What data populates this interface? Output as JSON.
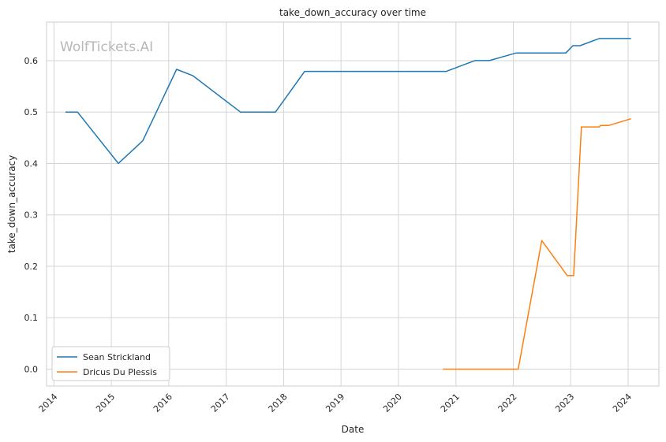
{
  "chart_data": {
    "type": "line",
    "title": "take_down_accuracy over time",
    "xlabel": "Date",
    "ylabel": "take_down_accuracy",
    "watermark": "WolfTickets.AI",
    "xlim": [
      "2013-11-15",
      "2024-07-15"
    ],
    "ylim": [
      -0.033,
      0.675
    ],
    "x_ticks": [
      "2014",
      "2015",
      "2016",
      "2017",
      "2018",
      "2019",
      "2020",
      "2021",
      "2022",
      "2023",
      "2024"
    ],
    "y_ticks": [
      "0.0",
      "0.1",
      "0.2",
      "0.3",
      "0.4",
      "0.5",
      "0.6"
    ],
    "grid": true,
    "legend_position": "lower-left",
    "series": [
      {
        "name": "Sean Strickland",
        "color": "#1f77b4",
        "points": [
          [
            "2014-03-15",
            0.5
          ],
          [
            "2014-05-31",
            0.5
          ],
          [
            "2015-02-15",
            0.4
          ],
          [
            "2015-07-20",
            0.444
          ],
          [
            "2016-02-20",
            0.583
          ],
          [
            "2016-06-01",
            0.571
          ],
          [
            "2017-04-01",
            0.5
          ],
          [
            "2017-11-10",
            0.5
          ],
          [
            "2018-05-15",
            0.579
          ],
          [
            "2020-11-01",
            0.579
          ],
          [
            "2021-05-01",
            0.6
          ],
          [
            "2021-08-01",
            0.6
          ],
          [
            "2022-01-20",
            0.615
          ],
          [
            "2022-12-01",
            0.615
          ],
          [
            "2023-01-15",
            0.629
          ],
          [
            "2023-03-01",
            0.629
          ],
          [
            "2023-07-01",
            0.643
          ],
          [
            "2024-01-20",
            0.643
          ]
        ]
      },
      {
        "name": "Dricus Du Plessis",
        "color": "#ff7f0e",
        "points": [
          [
            "2020-10-10",
            0.0
          ],
          [
            "2022-02-01",
            0.0
          ],
          [
            "2022-07-01",
            0.25
          ],
          [
            "2022-12-10",
            0.182
          ],
          [
            "2023-01-20",
            0.182
          ],
          [
            "2023-03-10",
            0.471
          ],
          [
            "2023-07-01",
            0.471
          ],
          [
            "2023-07-10",
            0.474
          ],
          [
            "2023-09-01",
            0.474
          ],
          [
            "2024-01-20",
            0.487
          ]
        ]
      }
    ]
  }
}
